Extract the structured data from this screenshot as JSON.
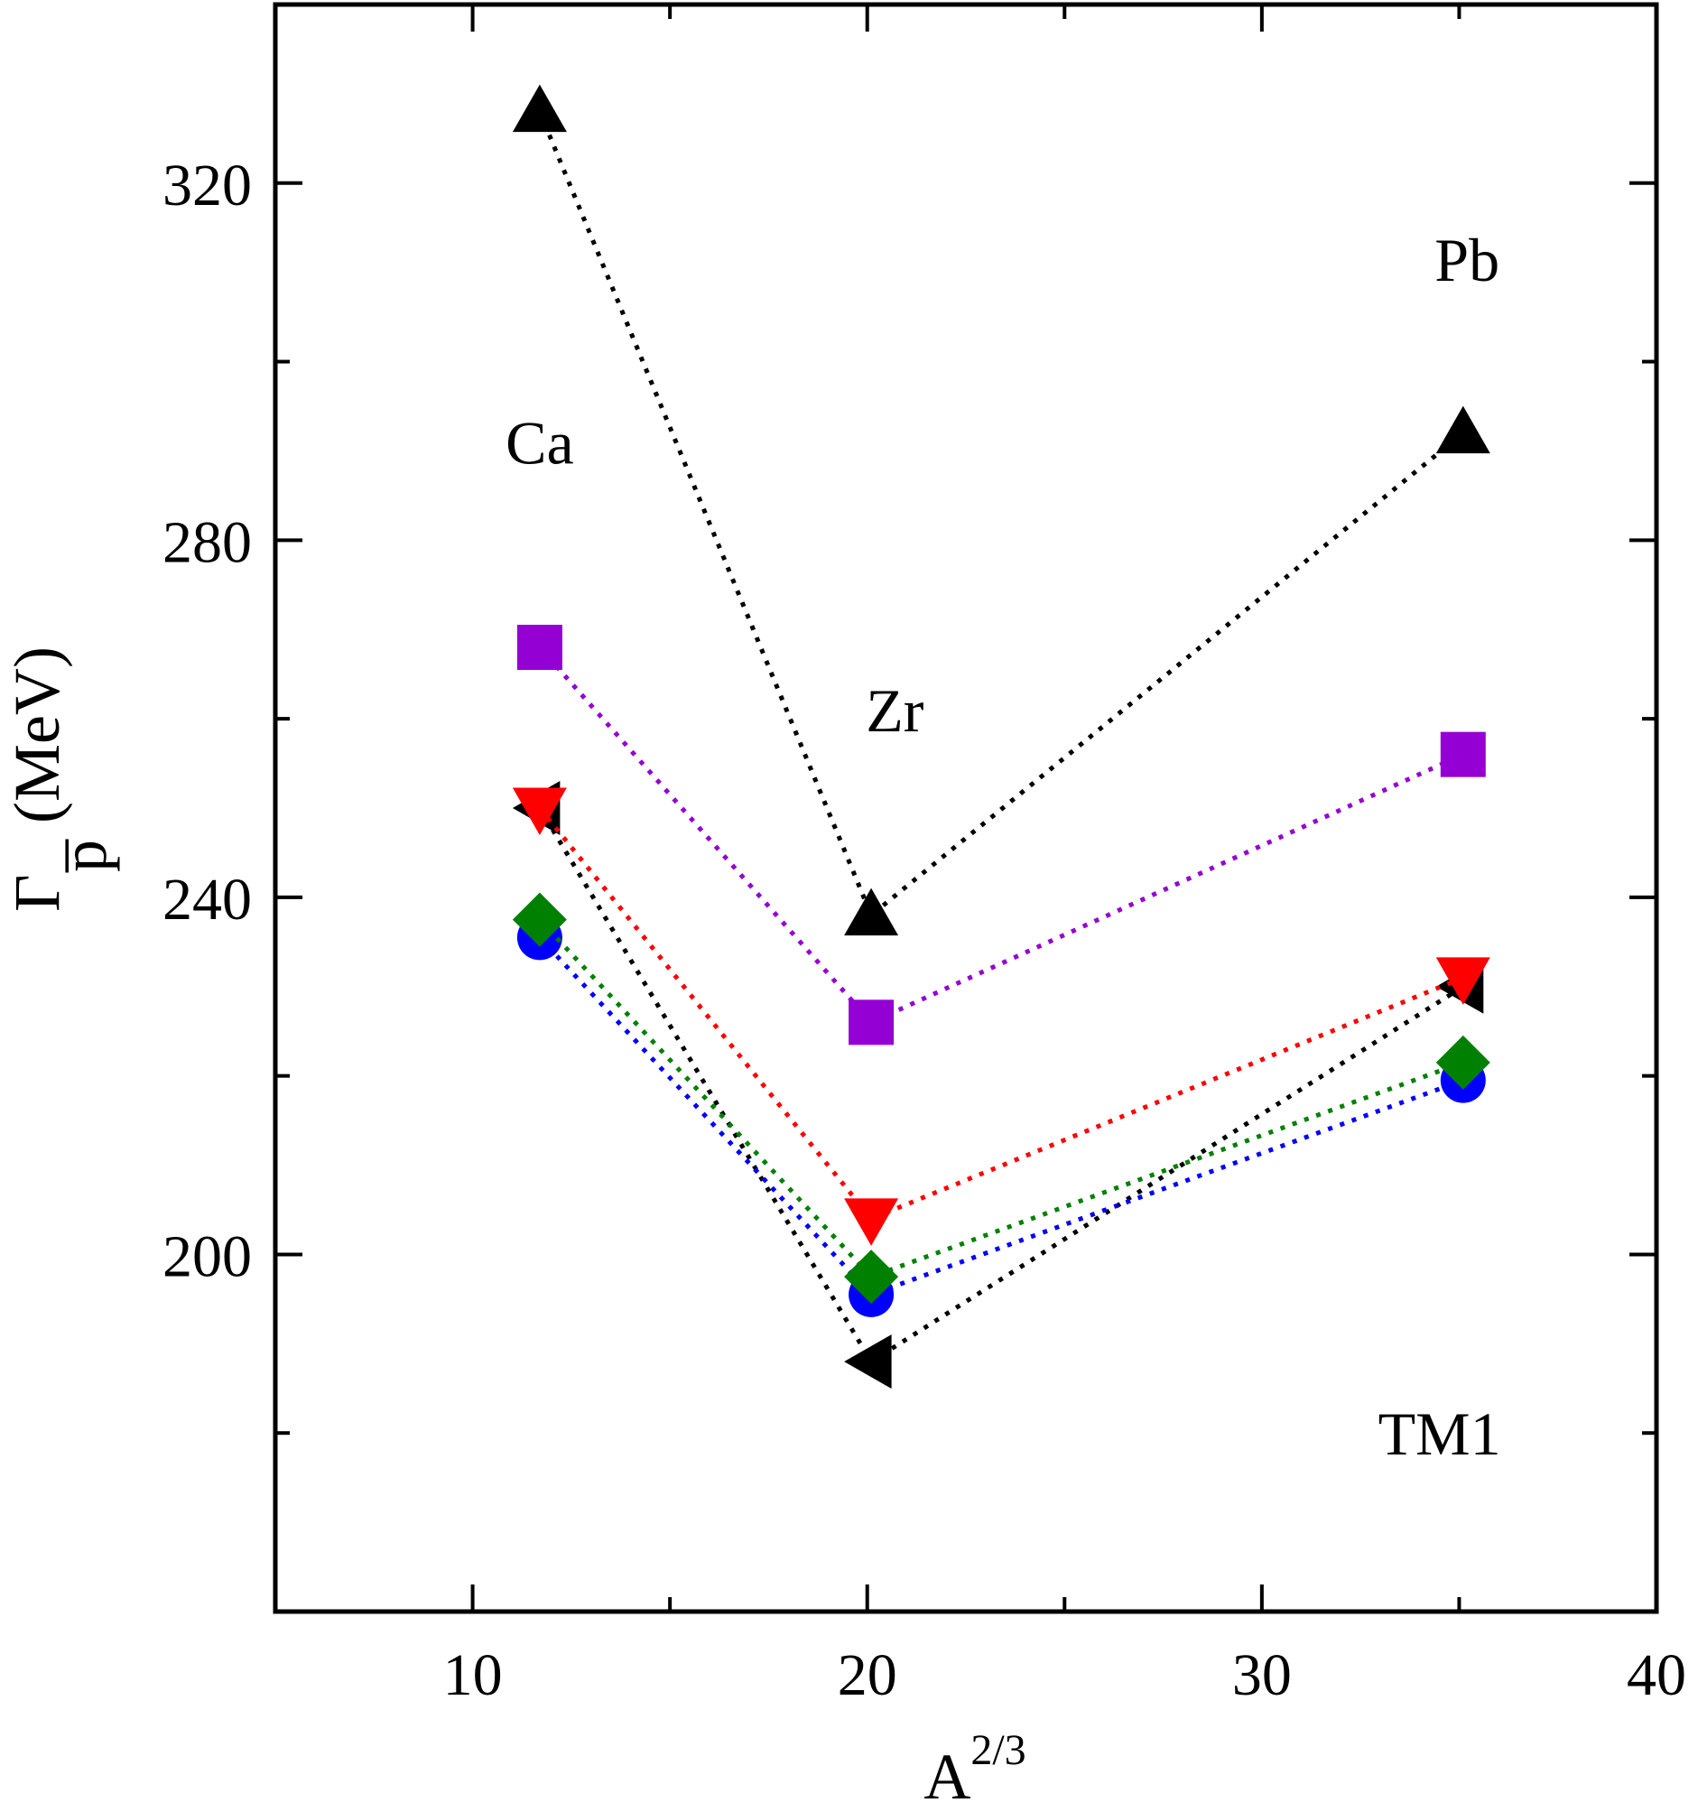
{
  "chart_data": {
    "type": "scatter",
    "xlabel": "A",
    "xlabel_superscript": "2/3",
    "ylabel_symbol": "Γ",
    "ylabel_subscript": "p",
    "ylabel_overbar": "–",
    "ylabel_unit": "(MeV)",
    "xlim": [
      5,
      40
    ],
    "ylim": [
      160,
      340
    ],
    "x_ticks": [
      10,
      20,
      30,
      40
    ],
    "y_ticks": [
      200,
      240,
      280,
      320
    ],
    "x_minor_ticks": [
      15,
      25,
      35
    ],
    "y_minor_ticks": [
      180,
      220,
      260,
      300
    ],
    "grid": false,
    "line_style": "dotted",
    "x": [
      11.7,
      20.1,
      35.1
    ],
    "series": [
      {
        "marker": "triangle-up",
        "color": "#000000",
        "values": [
          328,
          238,
          292
        ]
      },
      {
        "marker": "square",
        "color": "#9400d3",
        "values": [
          268,
          226,
          256
        ]
      },
      {
        "marker": "triangle-left",
        "color": "#000000",
        "values": [
          250,
          188,
          230
        ]
      },
      {
        "marker": "triangle-down",
        "color": "#ff0000",
        "values": [
          250,
          204,
          231
        ]
      },
      {
        "marker": "circle",
        "color": "#0000ff",
        "values": [
          235.5,
          195.5,
          219.5
        ]
      },
      {
        "marker": "diamond",
        "color": "#008000",
        "values": [
          237.5,
          197.5,
          221.5
        ]
      }
    ],
    "annotations": [
      {
        "text": "Ca",
        "x": 11.7,
        "y": 291
      },
      {
        "text": "Zr",
        "x": 20.7,
        "y": 261
      },
      {
        "text": "Pb",
        "x": 35.2,
        "y": 311.5
      },
      {
        "text": "TM1",
        "x": 34.5,
        "y": 180
      }
    ]
  }
}
